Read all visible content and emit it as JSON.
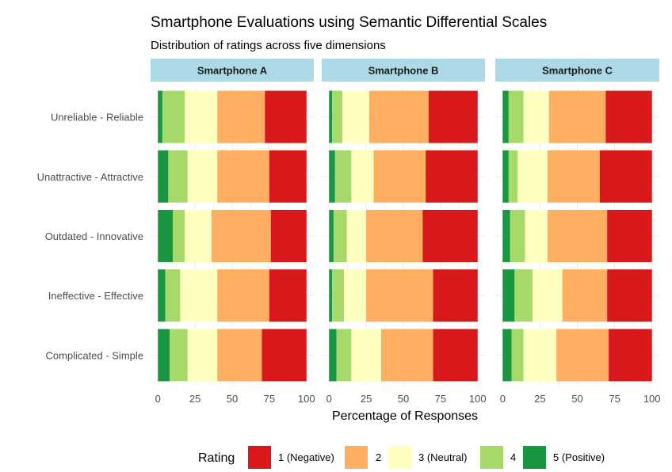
{
  "chart_data": {
    "type": "bar",
    "orientation": "horizontal",
    "stacked": true,
    "title": "Smartphone Evaluations using Semantic Differential Scales",
    "subtitle": "Distribution of ratings across five dimensions",
    "xlabel": "Percentage of Responses",
    "xlim": [
      0,
      100
    ],
    "xticks": [
      "0",
      "25",
      "50",
      "75",
      "100"
    ],
    "legend_title": "Rating",
    "legend_position": "bottom",
    "grid": true,
    "categories": [
      "Unreliable - Reliable",
      "Unattractive - Attractive",
      "Outdated - Innovative",
      "Ineffective - Effective",
      "Complicated - Simple"
    ],
    "ratings": [
      {
        "label": "1 (Negative)",
        "color": "#d7191c"
      },
      {
        "label": "2",
        "color": "#fdae61"
      },
      {
        "label": "3 (Neutral)",
        "color": "#ffffbf"
      },
      {
        "label": "4",
        "color": "#a6d96a"
      },
      {
        "label": "5 (Positive)",
        "color": "#1a9641"
      }
    ],
    "stack_order": [
      "5 (Positive)",
      "4",
      "3 (Neutral)",
      "2",
      "1 (Negative)"
    ],
    "panels": [
      {
        "name": "Smartphone A",
        "values": [
          [
            28,
            32,
            22,
            15,
            3
          ],
          [
            25,
            35,
            20,
            13,
            7
          ],
          [
            24,
            40,
            18,
            8,
            10
          ],
          [
            25,
            35,
            25,
            10,
            5
          ],
          [
            30,
            30,
            20,
            12,
            8
          ]
        ]
      },
      {
        "name": "Smartphone B",
        "values": [
          [
            33,
            40,
            18,
            7,
            2
          ],
          [
            35,
            35,
            15,
            11,
            4
          ],
          [
            37,
            38,
            13,
            9,
            3
          ],
          [
            30,
            45,
            15,
            8,
            2
          ],
          [
            30,
            35,
            20,
            10,
            5
          ]
        ]
      },
      {
        "name": "Smartphone C",
        "values": [
          [
            31,
            38,
            17,
            10,
            4
          ],
          [
            35,
            35,
            20,
            6,
            4
          ],
          [
            30,
            40,
            15,
            10,
            5
          ],
          [
            30,
            30,
            20,
            12,
            8
          ],
          [
            29,
            35,
            22,
            8,
            6
          ]
        ]
      }
    ]
  },
  "style": {
    "strip_fill": "#add8e6",
    "grid_color": "#ebebeb"
  }
}
